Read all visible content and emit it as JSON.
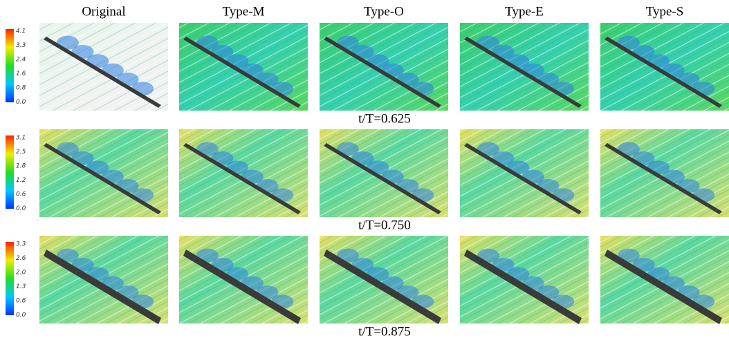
{
  "columns": [
    "Original",
    "Type-M",
    "Type-O",
    "Type-E",
    "Type-S"
  ],
  "rows": [
    {
      "label": "t/T=0.625",
      "colorbar": [
        "4.1",
        "3.3",
        "2.4",
        "1.6",
        "0.8",
        "0.0"
      ]
    },
    {
      "label": "t/T=0.750",
      "colorbar": [
        "3.1",
        "2.5",
        "1.8",
        "1.2",
        "0.6",
        "0.0"
      ]
    },
    {
      "label": "t/T=0.875",
      "colorbar": [
        "3.3",
        "2.6",
        "2.0",
        "1.3",
        "0.6",
        "0.0"
      ]
    }
  ]
}
